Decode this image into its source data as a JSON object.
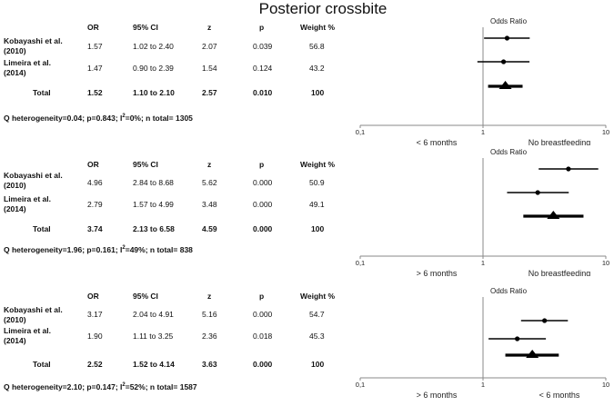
{
  "title": "Posterior crossbite",
  "columns": {
    "or": "OR",
    "ci": "95% CI",
    "z": "z",
    "p": "p",
    "weight": "Weight %"
  },
  "chart_data": [
    {
      "type": "forest",
      "axis_title": "Odds Ratio",
      "x_scale": "log",
      "xlim": [
        0.1,
        10
      ],
      "ticks": [
        "0,1",
        "1",
        "10"
      ],
      "left_label": "< 6 months",
      "right_label": "No breastfeeding",
      "rows": [
        {
          "study1": "Kobayashi et al.",
          "study2": "(2010)",
          "or": "1.57",
          "ci": "1.02 to 2.40",
          "z": "2.07",
          "p": "0.039",
          "weight": "56.8",
          "or_v": 1.57,
          "lo": 1.02,
          "hi": 2.4
        },
        {
          "study1": "Limeira et al.",
          "study2": "(2014)",
          "or": "1.47",
          "ci": "0.90 to 2.39",
          "z": "1.54",
          "p": "0.124",
          "weight": "43.2",
          "or_v": 1.47,
          "lo": 0.9,
          "hi": 2.39
        }
      ],
      "total": {
        "label": "Total",
        "or": "1.52",
        "ci": "1.10 to 2.10",
        "z": "2.57",
        "p": "0.010",
        "weight": "100",
        "or_v": 1.52,
        "lo": 1.1,
        "hi": 2.1
      },
      "heterogeneity_pre": "Q heterogeneity=0.04; p=0.843; I",
      "heterogeneity_post": "=0%; n total= 1305"
    },
    {
      "type": "forest",
      "axis_title": "Odds Ratio",
      "x_scale": "log",
      "xlim": [
        0.1,
        10
      ],
      "ticks": [
        "0,1",
        "1",
        "10"
      ],
      "left_label": "> 6 months",
      "right_label": "No breastfeeding",
      "rows": [
        {
          "study1": "Kobayashi et al.",
          "study2": "(2010)",
          "or": "4.96",
          "ci": "2.84 to 8.68",
          "z": "5.62",
          "p": "0.000",
          "weight": "50.9",
          "or_v": 4.96,
          "lo": 2.84,
          "hi": 8.68
        },
        {
          "study1": "Limeira et al.",
          "study2": "(2014)",
          "or": "2.79",
          "ci": "1.57 to 4.99",
          "z": "3.48",
          "p": "0.000",
          "weight": "49.1",
          "or_v": 2.79,
          "lo": 1.57,
          "hi": 4.99
        }
      ],
      "total": {
        "label": "Total",
        "or": "3.74",
        "ci": "2.13 to 6.58",
        "z": "4.59",
        "p": "0.000",
        "weight": "100",
        "or_v": 3.74,
        "lo": 2.13,
        "hi": 6.58
      },
      "heterogeneity_pre": "Q heterogeneity=1.96; p=0.161; I",
      "heterogeneity_post": "=49%; n total= 838"
    },
    {
      "type": "forest",
      "axis_title": "Odds Ratio",
      "x_scale": "log",
      "xlim": [
        0.1,
        10
      ],
      "ticks": [
        "0,1",
        "1",
        "10"
      ],
      "left_label": "> 6 months",
      "right_label": "< 6 months",
      "rows": [
        {
          "study1": "Kobayashi et al.",
          "study2": "(2010)",
          "or": "3.17",
          "ci": "2.04 to 4.91",
          "z": "5.16",
          "p": "0.000",
          "weight": "54.7",
          "or_v": 3.17,
          "lo": 2.04,
          "hi": 4.91
        },
        {
          "study1": "Limeira et al.",
          "study2": "(2014)",
          "or": "1.90",
          "ci": "1.11 to 3.25",
          "z": "2.36",
          "p": "0.018",
          "weight": "45.3",
          "or_v": 1.9,
          "lo": 1.11,
          "hi": 3.25
        }
      ],
      "total": {
        "label": "Total",
        "or": "2.52",
        "ci": "1.52 to 4.14",
        "z": "3.63",
        "p": "0.000",
        "weight": "100",
        "or_v": 2.52,
        "lo": 1.52,
        "hi": 4.14
      },
      "heterogeneity_pre": "Q heterogeneity=2.10; p=0.147; I",
      "heterogeneity_post": "=52%; n total= 1587"
    }
  ]
}
